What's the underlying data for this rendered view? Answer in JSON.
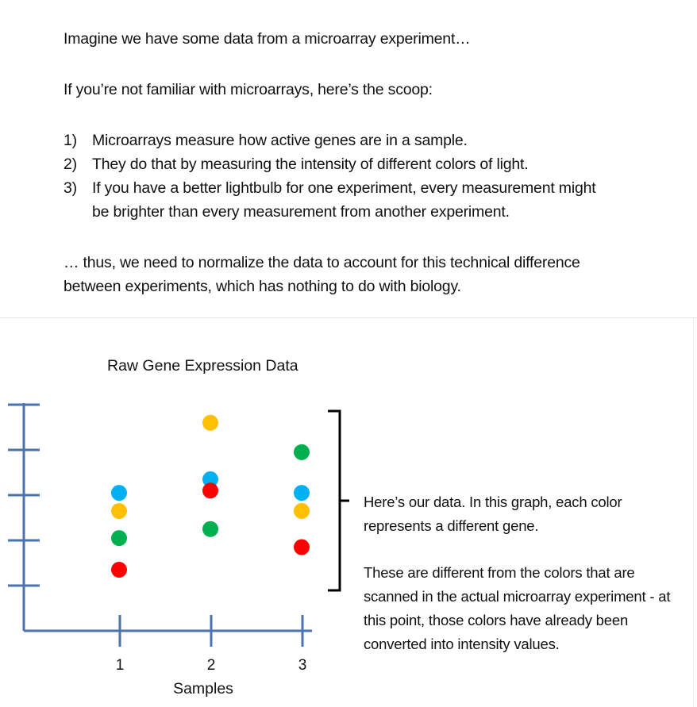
{
  "intro": {
    "line1": "Imagine we have some data from a microarray experiment…",
    "line2": "If you’re not familiar with microarrays, here’s the scoop:",
    "items": [
      {
        "num": "1)",
        "text": "Microarrays measure how active genes are in a sample."
      },
      {
        "num": "2)",
        "text": "They do that by measuring the intensity of different colors of light."
      },
      {
        "num": "3)",
        "text": "If you have a better lightbulb for one experiment, every measurement might be brighter than every measurement from another experiment."
      }
    ],
    "conclusion": "… thus, we need to normalize the data to account for this technical difference between experiments, which has nothing to do with biology."
  },
  "chart_data": {
    "type": "scatter",
    "title": "Raw Gene Expression Data",
    "xlabel": "Samples",
    "ylabel": "",
    "categories": [
      "1",
      "2",
      "3"
    ],
    "ylim": [
      0,
      5
    ],
    "yticks": [
      1,
      2,
      3,
      4,
      5
    ],
    "legend": "none",
    "grid": false,
    "series": [
      {
        "color": "#00b0f0",
        "values": [
          3.05,
          3.35,
          3.05
        ]
      },
      {
        "color": "#ffc000",
        "values": [
          2.65,
          4.6,
          2.65
        ]
      },
      {
        "color": "#00b050",
        "values": [
          2.05,
          2.25,
          3.95
        ]
      },
      {
        "color": "#ff0000",
        "values": [
          1.35,
          3.1,
          1.85
        ]
      }
    ],
    "annotation": {
      "paragraph1": "Here’s our data. In this graph, each color represents a different gene.",
      "paragraph2": "These are different from the colors that are scanned in the actual microarray experiment - at this point, those colors have already been converted into intensity values."
    }
  },
  "colors": {
    "axis": "#4a73b0",
    "bracket": "#000000"
  }
}
